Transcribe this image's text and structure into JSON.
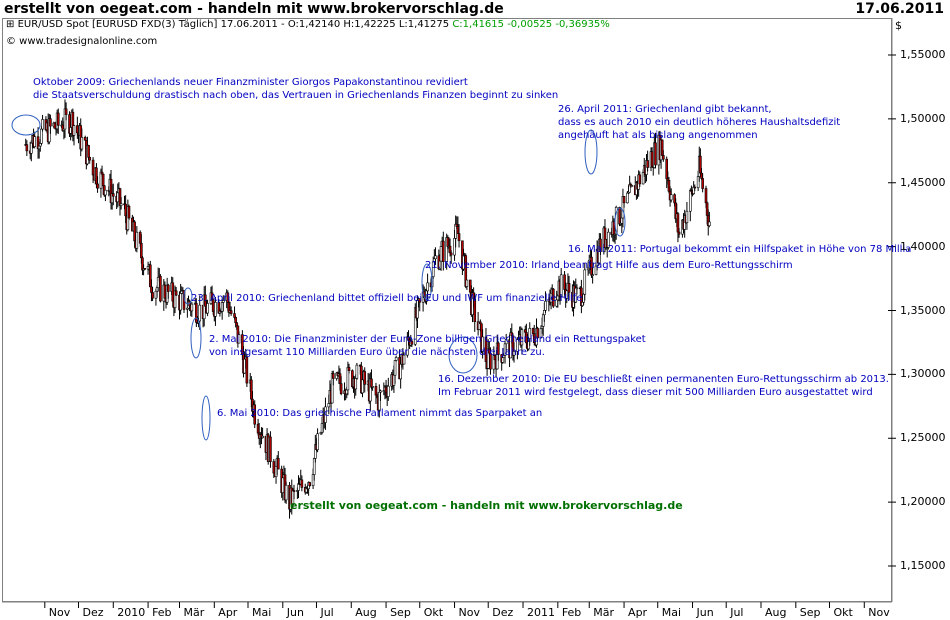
{
  "header": {
    "title": "erstellt von oegeat.com - handeln mit www.brokervorschlag.de",
    "date": "17.06.2011"
  },
  "info": {
    "symbol": "EUR/USD Spot [EURUSD FXD(3)",
    "period": "Täglich]",
    "quote": "17.06.2011 - O:1,42140 H:1,42225 L:1,41275",
    "change": "C:1,41615 -0,00525 -0,36935%",
    "source": "© www.tradesignalonline.com"
  },
  "currency_label": "$",
  "watermark": "erstellt von oegeat.com - handeln mit www.brokervorschlag.de",
  "annotations": [
    {
      "lines": [
        "Oktober 2009: Griechenlands neuer Finanzminister Giorgos Papakonstantinou revidiert",
        "die Staatsverschuldung drastisch nach oben, das Vertrauen in Griechenlands Finanzen beginnt zu sinken"
      ]
    },
    {
      "lines": [
        "26. April 2011: Griechenland gibt bekannt,",
        "dass es auch 2010 ein deutlich höheres Haushaltsdefizit",
        "angehäuft hat als bislang angenommen"
      ]
    },
    {
      "lines": [
        "16. Mai 2011: Portugal bekommt ein Hilfspaket in Höhe von 78 Millia"
      ]
    },
    {
      "lines": [
        "21. November 2010: Irland beantragt Hilfe aus dem Euro-Rettungsschirm"
      ]
    },
    {
      "lines": [
        "23. April 2010: Griechenland bittet offiziell bei EU und IWF um finanzielle Hilfe"
      ]
    },
    {
      "lines": [
        "2. Mai 2010: Die Finanzminister der Euro-Zone billigen Griechenland ein Rettungspaket",
        "von insgesamt 110 Milliarden Euro über die nächsten drei Jahre zu."
      ]
    },
    {
      "lines": [
        "16. Dezember 2010: Die EU beschließt einen permanenten Euro-Rettungsschirm ab 2013.",
        "Im Februar 2011 wird festgelegt, dass dieser mit 500 Milliarden Euro ausgestattet wird"
      ]
    },
    {
      "lines": [
        "6. Mai 2010: Das griechische Parlament nimmt das Sparpaket an"
      ]
    }
  ],
  "chart_data": {
    "type": "candlestick",
    "series": [
      {
        "name": "EUR/USD Spot"
      }
    ],
    "ylim": [
      1.13,
      1.58
    ],
    "yticks": [
      "1,55000",
      "1,50000",
      "1,45000",
      "1,40000",
      "1,35000",
      "1,30000",
      "1,25000",
      "1,20000",
      "1,15000"
    ],
    "ytick_values": [
      1.55,
      1.5,
      1.45,
      1.4,
      1.35,
      1.3,
      1.25,
      1.2,
      1.15
    ],
    "xticks": [
      "Nov",
      "Dez",
      "2010",
      "Feb",
      "Mär",
      "Apr",
      "Mai",
      "Jun",
      "Jul",
      "Aug",
      "Sep",
      "Okt",
      "Nov",
      "Dez",
      "2011",
      "Feb",
      "Mär",
      "Apr",
      "Mai",
      "Jun",
      "Jul",
      "Aug",
      "Sep",
      "Okt",
      "Nov"
    ],
    "x": [
      "2009-10-15",
      "2009-11-01",
      "2009-11-25",
      "2009-12-15",
      "2010-01-10",
      "2010-02-05",
      "2010-02-25",
      "2010-03-20",
      "2010-04-12",
      "2010-04-25",
      "2010-05-07",
      "2010-05-20",
      "2010-06-07",
      "2010-06-25",
      "2010-07-15",
      "2010-08-05",
      "2010-08-25",
      "2010-09-15",
      "2010-10-15",
      "2010-11-04",
      "2010-11-15",
      "2010-11-30",
      "2010-12-16",
      "2011-01-10",
      "2011-02-01",
      "2011-02-20",
      "2011-03-10",
      "2011-04-01",
      "2011-04-25",
      "2011-05-04",
      "2011-05-20",
      "2011-06-07",
      "2011-06-17"
    ],
    "close": [
      1.48,
      1.49,
      1.5,
      1.46,
      1.43,
      1.37,
      1.36,
      1.35,
      1.36,
      1.32,
      1.27,
      1.24,
      1.2,
      1.22,
      1.29,
      1.3,
      1.28,
      1.31,
      1.39,
      1.41,
      1.36,
      1.31,
      1.32,
      1.33,
      1.37,
      1.36,
      1.4,
      1.43,
      1.47,
      1.48,
      1.41,
      1.46,
      1.416
    ]
  }
}
